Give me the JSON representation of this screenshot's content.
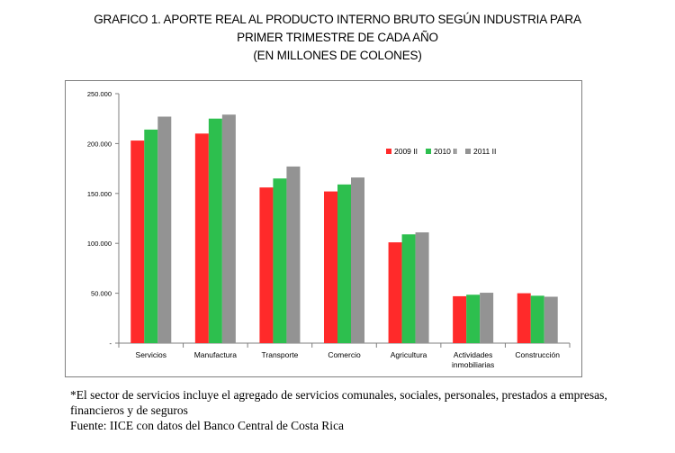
{
  "title_lines": [
    "GRAFICO 1. APORTE REAL AL PRODUCTO INTERNO BRUTO SEGÚN INDUSTRIA PARA",
    "PRIMER TRIMESTRE DE CADA AÑO",
    "(EN MILLONES DE COLONES)"
  ],
  "footnote": {
    "note_line1": "*El sector de servicios incluye el agregado de servicios comunales, sociales, personales, prestados a empresas,",
    "note_line2": "financieros y de seguros",
    "source": "Fuente: IICE con datos del Banco Central de Costa Rica"
  },
  "chart_data": {
    "type": "bar",
    "categories": [
      [
        "Servicios"
      ],
      [
        "Manufactura"
      ],
      [
        "Transporte"
      ],
      [
        "Comercio"
      ],
      [
        "Agricultura"
      ],
      [
        "Actividades",
        "inmobiliarias"
      ],
      [
        "Construcción"
      ]
    ],
    "series": [
      {
        "name": "2009 II",
        "color": "#ff2a2a",
        "values": [
          203000,
          210000,
          156000,
          152000,
          101000,
          47000,
          50000
        ]
      },
      {
        "name": "2010 II",
        "color": "#2dbf4e",
        "values": [
          214000,
          225000,
          165000,
          159000,
          109000,
          48500,
          47500
        ]
      },
      {
        "name": "2011 II",
        "color": "#939393",
        "values": [
          227000,
          229000,
          177000,
          166000,
          111000,
          50500,
          46500
        ]
      }
    ],
    "y_ticks": [
      {
        "value": 0,
        "label": "-"
      },
      {
        "value": 50000,
        "label": "50.000"
      },
      {
        "value": 100000,
        "label": "100.000"
      },
      {
        "value": 150000,
        "label": "150.000"
      },
      {
        "value": 200000,
        "label": "200.000"
      },
      {
        "value": 250000,
        "label": "250.000"
      }
    ],
    "ylim": [
      0,
      250000
    ],
    "legend": "upper-right",
    "grid": false
  }
}
